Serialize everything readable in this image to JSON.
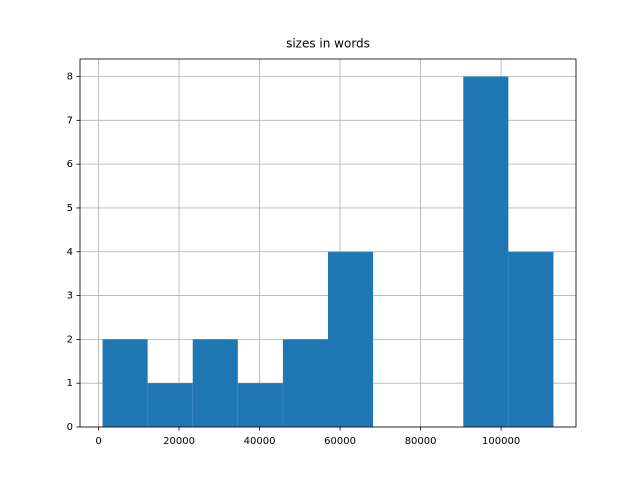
{
  "chart_data": {
    "type": "histogram",
    "title": "sizes in words",
    "bins": [
      1000,
      12200,
      23400,
      34600,
      45800,
      57000,
      68200,
      79400,
      90600,
      101800,
      113000
    ],
    "counts": [
      2,
      1,
      2,
      1,
      2,
      4,
      0,
      0,
      8,
      4
    ],
    "color": "#1f77b4",
    "xlim": [
      -4600,
      118600
    ],
    "xticks": [
      0,
      20000,
      40000,
      60000,
      80000,
      100000
    ],
    "ylim": [
      0,
      8.4
    ],
    "yticks": [
      0,
      1,
      2,
      3,
      4,
      5,
      6,
      7,
      8
    ],
    "grid": true
  }
}
